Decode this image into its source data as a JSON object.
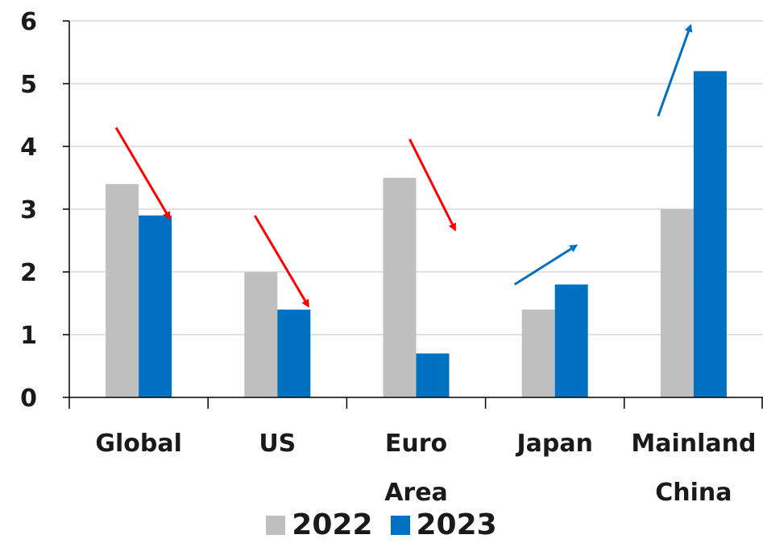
{
  "chart_data": {
    "type": "bar",
    "categories": [
      [
        "Global"
      ],
      [
        "US"
      ],
      [
        "Euro",
        "Area"
      ],
      [
        "Japan"
      ],
      [
        "Mainland",
        "China"
      ]
    ],
    "series": [
      {
        "name": "2022",
        "color": "#c0c0c0",
        "values": [
          3.4,
          2.0,
          3.5,
          1.4,
          3.0
        ]
      },
      {
        "name": "2023",
        "color": "#0070c0",
        "values": [
          2.9,
          1.4,
          0.7,
          1.8,
          5.2
        ]
      }
    ],
    "yticks": [
      0,
      1,
      2,
      3,
      4,
      5,
      6
    ],
    "ylim": [
      0,
      6
    ],
    "grid": true,
    "legend_position": "bottom",
    "trend_arrows": [
      {
        "category": "Global",
        "direction": "down",
        "color": "#ff0000"
      },
      {
        "category": "US",
        "direction": "down",
        "color": "#ff0000"
      },
      {
        "category": "Euro Area",
        "direction": "down",
        "color": "#ff0000"
      },
      {
        "category": "Japan",
        "direction": "up",
        "color": "#0070c0"
      },
      {
        "category": "Mainland China",
        "direction": "up",
        "color": "#0070c0"
      }
    ]
  }
}
